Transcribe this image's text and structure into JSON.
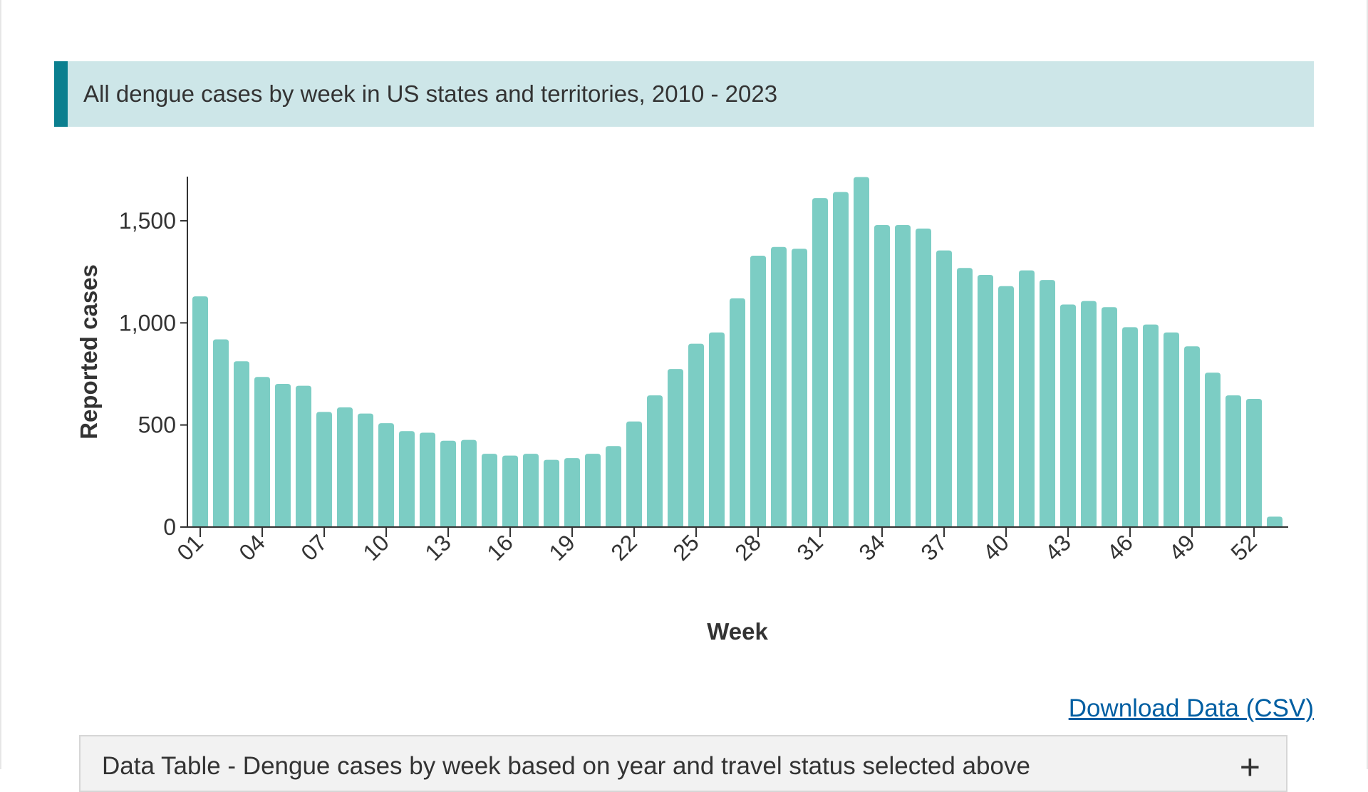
{
  "header": {
    "title": "All dengue cases by week in US states and territories, 2010 - 2023",
    "accent_color": "#0b7f8f"
  },
  "chart_data": {
    "type": "bar",
    "title": "All dengue cases by week in US states and territories, 2010 - 2023",
    "xlabel": "Week",
    "ylabel": "Reported cases",
    "ylim": [
      0,
      1714
    ],
    "yticks": [
      0,
      500,
      1000,
      1500
    ],
    "ytick_labels": [
      "0",
      "500",
      "1,000",
      "1,500"
    ],
    "xtick_labels": [
      "01",
      "04",
      "07",
      "10",
      "13",
      "16",
      "19",
      "22",
      "25",
      "28",
      "31",
      "34",
      "37",
      "40",
      "43",
      "46",
      "49",
      "52"
    ],
    "bar_color": "#7ccdc4",
    "grid": false,
    "categories": [
      "01",
      "02",
      "03",
      "04",
      "05",
      "06",
      "07",
      "08",
      "09",
      "10",
      "11",
      "12",
      "13",
      "14",
      "15",
      "16",
      "17",
      "18",
      "19",
      "20",
      "21",
      "22",
      "23",
      "24",
      "25",
      "26",
      "27",
      "28",
      "29",
      "30",
      "31",
      "32",
      "33",
      "34",
      "35",
      "36",
      "37",
      "38",
      "39",
      "40",
      "41",
      "42",
      "43",
      "44",
      "45",
      "46",
      "47",
      "48",
      "49",
      "50",
      "51",
      "52",
      "53"
    ],
    "values": [
      1130,
      919,
      812,
      735,
      701,
      692,
      564,
      586,
      556,
      509,
      470,
      462,
      423,
      427,
      359,
      350,
      359,
      329,
      338,
      359,
      397,
      517,
      645,
      774,
      898,
      953,
      1120,
      1329,
      1372,
      1363,
      1611,
      1641,
      1714,
      1479,
      1479,
      1462,
      1355,
      1269,
      1235,
      1180,
      1257,
      1210,
      1090,
      1107,
      1077,
      979,
      992,
      953,
      885,
      756,
      645,
      628,
      51
    ]
  },
  "download": {
    "label": "Download Data (CSV)"
  },
  "data_table": {
    "label": "Data Table - Dengue cases by week based on year and travel status selected above",
    "toggle": "+"
  }
}
